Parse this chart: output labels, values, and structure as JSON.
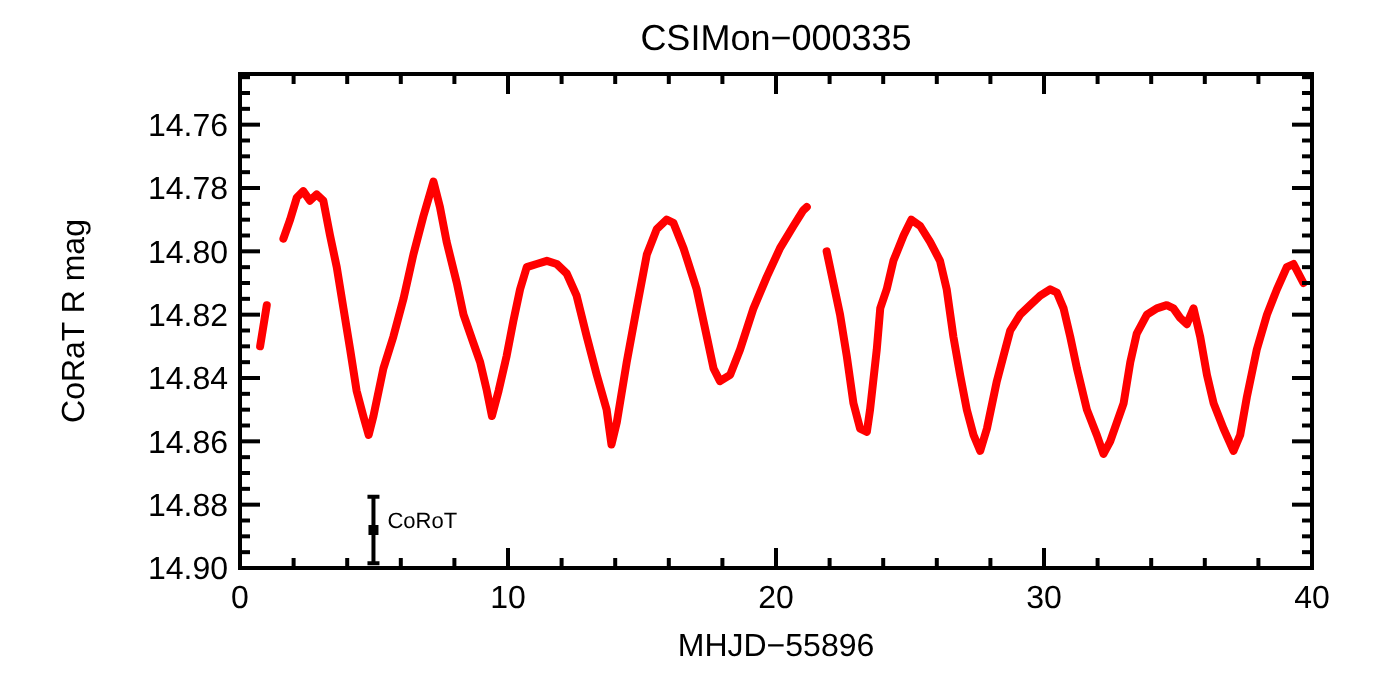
{
  "chart_data": {
    "type": "line",
    "title": "CSIMon−000335",
    "xlabel": "MHJD−55896",
    "ylabel": "CoRaT R mag",
    "xlim": [
      0,
      40
    ],
    "xticks": [
      0,
      10,
      20,
      30,
      40,
      {
        "value": 2,
        "label": null
      },
      {
        "value": 4,
        "label": null
      },
      {
        "value": 6,
        "label": null
      },
      {
        "value": 8,
        "label": null
      },
      {
        "value": 12,
        "label": null
      },
      {
        "value": 14,
        "label": null
      },
      {
        "value": 16,
        "label": null
      },
      {
        "value": 18,
        "label": null
      },
      {
        "value": 22,
        "label": null
      },
      {
        "value": 24,
        "label": null
      },
      {
        "value": 26,
        "label": null
      },
      {
        "value": 28,
        "label": null
      },
      {
        "value": 32,
        "label": null
      },
      {
        "value": 34,
        "label": null
      },
      {
        "value": 36,
        "label": null
      },
      {
        "value": 38,
        "label": null
      }
    ],
    "ylim": [
      14.9,
      14.744
    ],
    "yticks": [
      {
        "value": 14.76,
        "label": "14.76"
      },
      {
        "value": 14.78,
        "label": "14.78"
      },
      {
        "value": 14.8,
        "label": "14.80"
      },
      {
        "value": 14.82,
        "label": "14.82"
      },
      {
        "value": 14.84,
        "label": "14.84"
      },
      {
        "value": 14.86,
        "label": "14.86"
      },
      {
        "value": 14.88,
        "label": "14.88"
      },
      {
        "value": 14.9,
        "label": "14.90"
      },
      {
        "value": 14.745,
        "label": null
      },
      {
        "value": 14.75,
        "label": null
      },
      {
        "value": 14.755,
        "label": null
      },
      {
        "value": 14.765,
        "label": null
      },
      {
        "value": 14.77,
        "label": null
      },
      {
        "value": 14.775,
        "label": null
      },
      {
        "value": 14.785,
        "label": null
      },
      {
        "value": 14.79,
        "label": null
      },
      {
        "value": 14.795,
        "label": null
      },
      {
        "value": 14.805,
        "label": null
      },
      {
        "value": 14.81,
        "label": null
      },
      {
        "value": 14.815,
        "label": null
      },
      {
        "value": 14.825,
        "label": null
      },
      {
        "value": 14.83,
        "label": null
      },
      {
        "value": 14.835,
        "label": null
      },
      {
        "value": 14.845,
        "label": null
      },
      {
        "value": 14.85,
        "label": null
      },
      {
        "value": 14.855,
        "label": null
      },
      {
        "value": 14.865,
        "label": null
      },
      {
        "value": 14.87,
        "label": null
      },
      {
        "value": 14.875,
        "label": null
      },
      {
        "value": 14.885,
        "label": null
      },
      {
        "value": 14.89,
        "label": null
      },
      {
        "value": 14.895,
        "label": null
      }
    ],
    "series": [
      {
        "color": "#ff0000",
        "marker": "none",
        "line_style": "solid",
        "x": [
          0.75,
          1.0
        ],
        "values": [
          14.83,
          14.817
        ]
      },
      {
        "color": "#ff0000",
        "marker": "none",
        "line_style": "solid",
        "x": [
          1.62,
          1.87,
          2.12,
          2.36,
          2.61,
          2.86,
          3.11,
          3.36,
          3.61,
          3.86,
          4.11,
          4.35,
          4.6,
          4.8,
          4.98,
          5.35,
          5.72,
          6.1,
          6.47,
          6.84,
          7.22,
          7.46,
          7.71,
          8.09,
          8.34,
          8.71,
          8.96,
          9.21,
          9.4,
          9.65,
          9.95,
          10.2,
          10.45,
          10.7,
          11.07,
          11.45,
          11.82,
          12.19,
          12.56,
          12.94,
          13.31,
          13.68,
          13.86,
          14.06,
          14.43,
          14.8,
          15.18,
          15.55,
          15.92,
          16.17,
          16.55,
          17.04,
          17.42,
          17.67,
          17.91,
          18.29,
          18.66,
          19.16,
          19.66,
          20.15,
          20.65,
          21.02,
          21.15
        ],
        "values": [
          14.796,
          14.79,
          14.783,
          14.781,
          14.784,
          14.782,
          14.784,
          14.795,
          14.805,
          14.818,
          14.831,
          14.844,
          14.852,
          14.858,
          14.852,
          14.837,
          14.827,
          14.815,
          14.801,
          14.789,
          14.778,
          14.786,
          14.797,
          14.81,
          14.82,
          14.829,
          14.835,
          14.844,
          14.852,
          14.844,
          14.833,
          14.822,
          14.812,
          14.805,
          14.804,
          14.803,
          14.804,
          14.807,
          14.814,
          14.827,
          14.839,
          14.85,
          14.861,
          14.854,
          14.835,
          14.818,
          14.801,
          14.793,
          14.79,
          14.791,
          14.799,
          14.812,
          14.827,
          14.837,
          14.841,
          14.839,
          14.831,
          14.818,
          14.808,
          14.799,
          14.792,
          14.787,
          14.786
        ]
      },
      {
        "color": "#ff0000",
        "marker": "none",
        "line_style": "solid",
        "x": [
          21.89,
          22.14,
          22.39,
          22.64,
          22.89,
          23.14,
          23.39,
          23.51,
          23.76,
          23.89,
          24.13,
          24.38,
          24.76,
          25.05,
          25.38,
          25.75,
          26.12,
          26.37,
          26.62,
          26.87,
          27.12,
          27.37,
          27.62,
          27.87,
          28.24,
          28.49,
          28.74,
          29.11,
          29.48,
          29.86,
          30.23,
          30.48,
          30.73,
          30.98,
          31.23,
          31.6,
          31.97,
          32.22,
          32.47,
          32.72,
          32.97,
          33.22,
          33.46,
          33.84,
          34.21,
          34.58,
          34.83,
          35.08,
          35.33,
          35.58,
          35.83,
          36.08,
          36.33,
          36.7,
          37.07,
          37.32,
          37.57,
          37.94,
          38.32,
          38.69,
          39.06,
          39.31,
          39.68
        ],
        "values": [
          14.8,
          14.81,
          14.82,
          14.833,
          14.848,
          14.856,
          14.857,
          14.85,
          14.831,
          14.818,
          14.812,
          14.803,
          14.795,
          14.79,
          14.792,
          14.797,
          14.803,
          14.812,
          14.827,
          14.839,
          14.85,
          14.858,
          14.863,
          14.856,
          14.841,
          14.833,
          14.825,
          14.82,
          14.817,
          14.814,
          14.812,
          14.813,
          14.818,
          14.827,
          14.837,
          14.85,
          14.858,
          14.864,
          14.86,
          14.854,
          14.848,
          14.835,
          14.826,
          14.82,
          14.818,
          14.817,
          14.818,
          14.821,
          14.823,
          14.818,
          14.827,
          14.839,
          14.848,
          14.856,
          14.863,
          14.858,
          14.846,
          14.831,
          14.82,
          14.812,
          14.805,
          14.804,
          14.81
        ]
      },
      {
        "type": "scatter",
        "name": "CoRoT",
        "color": "#000000",
        "marker": "square",
        "x": [
          4.98
        ],
        "values": [
          14.888
        ],
        "errors": [
          0.0105
        ]
      }
    ]
  }
}
